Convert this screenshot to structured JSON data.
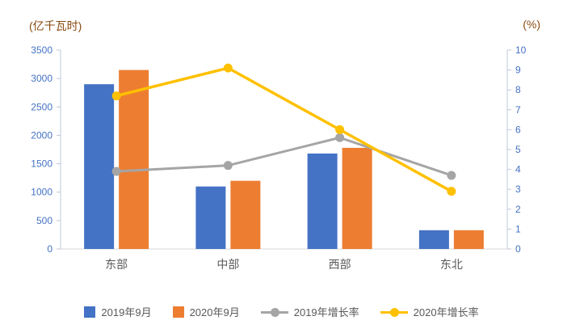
{
  "chart_data": {
    "type": "combo-bar-line",
    "categories": [
      "东部",
      "中部",
      "西部",
      "东北"
    ],
    "bar_series": [
      {
        "name": "2019年9月",
        "color": "#4472C4",
        "axis": "left",
        "values": [
          2900,
          1100,
          1680,
          330
        ]
      },
      {
        "name": "2020年9月",
        "color": "#ED7D31",
        "axis": "left",
        "values": [
          3150,
          1200,
          1780,
          330
        ]
      }
    ],
    "line_series": [
      {
        "name": "2019年增长率",
        "color": "#A5A5A5",
        "axis": "right",
        "values": [
          3.9,
          4.2,
          5.6,
          3.7
        ]
      },
      {
        "name": "2020年增长率",
        "color": "#FFC000",
        "axis": "right",
        "values": [
          7.7,
          9.1,
          6.0,
          2.9
        ]
      }
    ],
    "left_axis": {
      "title": "(亿千瓦时)",
      "min": 0,
      "max": 3500,
      "step": 500
    },
    "right_axis": {
      "title": "(%)",
      "min": 0,
      "max": 10,
      "step": 1
    },
    "grid": false,
    "legend_position": "bottom",
    "colors": {
      "tick_label": "#4472C4",
      "category_label": "#595959",
      "axis_line": "#bfc9d9",
      "axis_title": "#8a4a10"
    }
  }
}
